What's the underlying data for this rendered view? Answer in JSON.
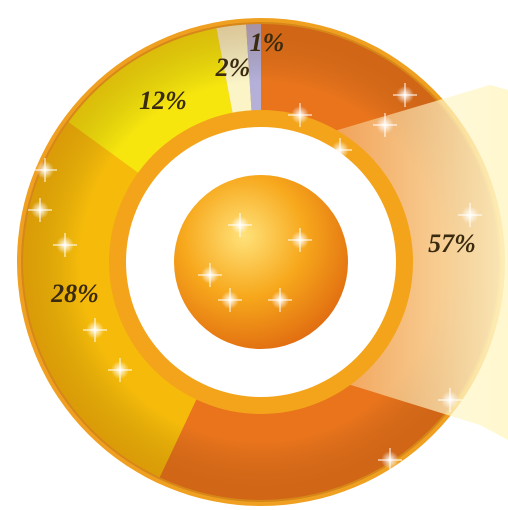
{
  "chart_data": {
    "type": "donut",
    "categories": [
      null,
      null,
      null,
      null,
      null
    ],
    "values": [
      57,
      28,
      12,
      2,
      1
    ],
    "value_labels": [
      "57%",
      "28%",
      "12%",
      "2%",
      "1%"
    ],
    "colors": [
      "#e9741c",
      "#f6bb0a",
      "#f7e60e",
      "#fbf4c6",
      "#b4b0d8"
    ]
  }
}
